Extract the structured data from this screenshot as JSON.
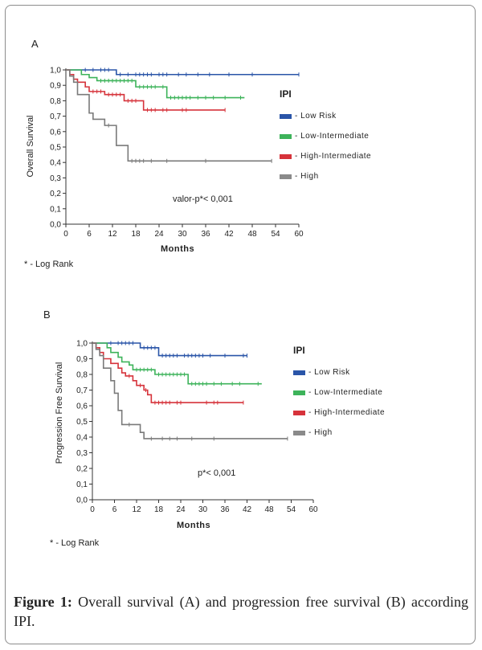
{
  "figure": {
    "caption_label": "Figure 1:",
    "caption_text": " Overall survival (A) and progression free survival (B) according IPI."
  },
  "chart_data": [
    {
      "type": "line",
      "panel": "A",
      "title": "",
      "xlabel": "Months",
      "ylabel": "Overall Survival",
      "xlim": [
        0,
        60
      ],
      "ylim": [
        0,
        1
      ],
      "xticks": [
        "0",
        "6",
        "12",
        "18",
        "24",
        "30",
        "36",
        "42",
        "48",
        "54",
        "60"
      ],
      "yticks": [
        "0,0",
        "0,1",
        "0,2",
        "0,3",
        "0,4",
        "0,5",
        "0,6",
        "0,7",
        "0,8",
        "0,9",
        "1,0"
      ],
      "annotation": "valor-p*< 0,001",
      "footnote": "* - Log Rank",
      "legend_title": "IPI",
      "legend_position": "right",
      "series": [
        {
          "name": "- Low Risk",
          "color": "#2a55a8",
          "steps": [
            [
              0,
              1.0
            ],
            [
              13,
              0.97
            ],
            [
              60,
              0.97
            ]
          ],
          "censors": [
            5,
            7,
            9,
            10,
            11,
            14,
            16,
            18,
            19,
            20,
            21,
            22,
            24,
            25,
            26,
            29,
            31,
            34,
            37,
            42,
            48,
            60
          ]
        },
        {
          "name": "- Low-Intermediate",
          "color": "#3db35a",
          "steps": [
            [
              0,
              1.0
            ],
            [
              4,
              0.97
            ],
            [
              6,
              0.95
            ],
            [
              8,
              0.93
            ],
            [
              18,
              0.89
            ],
            [
              26,
              0.82
            ],
            [
              46,
              0.82
            ]
          ],
          "censors": [
            9,
            10,
            11,
            12,
            13,
            14,
            15,
            16,
            17,
            19,
            20,
            21,
            22,
            23,
            25,
            27,
            28,
            29,
            30,
            31,
            32,
            34,
            36,
            38,
            41,
            45
          ]
        },
        {
          "name": "- High-Intermediate",
          "color": "#d6333b",
          "steps": [
            [
              0,
              1.0
            ],
            [
              1,
              0.97
            ],
            [
              2,
              0.94
            ],
            [
              3,
              0.92
            ],
            [
              5,
              0.89
            ],
            [
              6,
              0.86
            ],
            [
              10,
              0.84
            ],
            [
              15,
              0.8
            ],
            [
              20,
              0.74
            ],
            [
              41,
              0.74
            ]
          ],
          "censors": [
            7,
            8,
            9,
            11,
            12,
            13,
            14,
            16,
            17,
            18,
            21,
            22,
            23,
            25,
            26,
            30,
            31,
            41
          ]
        },
        {
          "name": "- High",
          "color": "#7a7a7a",
          "steps": [
            [
              0,
              1.0
            ],
            [
              1,
              0.96
            ],
            [
              2,
              0.92
            ],
            [
              3,
              0.84
            ],
            [
              6,
              0.72
            ],
            [
              7,
              0.68
            ],
            [
              10,
              0.64
            ],
            [
              13,
              0.51
            ],
            [
              16,
              0.41
            ],
            [
              53,
              0.41
            ]
          ],
          "censors": [
            11,
            17,
            18,
            19,
            20,
            22,
            26,
            36,
            53
          ]
        }
      ]
    },
    {
      "type": "line",
      "panel": "B",
      "title": "",
      "xlabel": "Months",
      "ylabel": "Progression Free Survival",
      "xlim": [
        0,
        60
      ],
      "ylim": [
        0,
        1
      ],
      "xticks": [
        "0",
        "6",
        "12",
        "18",
        "24",
        "30",
        "36",
        "42",
        "48",
        "54",
        "60"
      ],
      "yticks": [
        "0,0",
        "0,1",
        "0,2",
        "0,3",
        "0,4",
        "0,5",
        "0,6",
        "0,7",
        "0,8",
        "0,9",
        "1,0"
      ],
      "annotation": "p*< 0,001",
      "footnote": "* - Log Rank",
      "legend_title": "IPI",
      "legend_position": "right",
      "series": [
        {
          "name": "- Low Risk",
          "color": "#2a55a8",
          "steps": [
            [
              0,
              1.0
            ],
            [
              13,
              0.97
            ],
            [
              18,
              0.92
            ],
            [
              42,
              0.92
            ]
          ],
          "censors": [
            5,
            7,
            8,
            9,
            10,
            11,
            14,
            15,
            16,
            17,
            19,
            20,
            21,
            22,
            23,
            25,
            26,
            27,
            28,
            29,
            30,
            32,
            36,
            41,
            42
          ]
        },
        {
          "name": "- Low-Intermediate",
          "color": "#3db35a",
          "steps": [
            [
              0,
              1.0
            ],
            [
              4,
              0.97
            ],
            [
              5,
              0.94
            ],
            [
              7,
              0.91
            ],
            [
              8,
              0.88
            ],
            [
              10,
              0.86
            ],
            [
              11,
              0.83
            ],
            [
              17,
              0.8
            ],
            [
              26,
              0.74
            ],
            [
              46,
              0.74
            ]
          ],
          "censors": [
            12,
            13,
            14,
            15,
            16,
            18,
            19,
            20,
            21,
            22,
            23,
            24,
            25,
            27,
            28,
            29,
            30,
            31,
            33,
            35,
            38,
            40,
            45
          ]
        },
        {
          "name": "- High-Intermediate",
          "color": "#d6333b",
          "steps": [
            [
              0,
              1.0
            ],
            [
              1,
              0.97
            ],
            [
              2,
              0.94
            ],
            [
              3,
              0.9
            ],
            [
              5,
              0.87
            ],
            [
              7,
              0.84
            ],
            [
              8,
              0.81
            ],
            [
              9,
              0.79
            ],
            [
              11,
              0.76
            ],
            [
              12,
              0.73
            ],
            [
              14,
              0.7
            ],
            [
              15,
              0.67
            ],
            [
              16,
              0.62
            ],
            [
              41,
              0.62
            ]
          ],
          "censors": [
            10,
            13,
            14.5,
            17,
            18,
            19,
            20,
            21,
            23,
            24,
            31,
            33,
            34,
            41
          ]
        },
        {
          "name": "- High",
          "color": "#7a7a7a",
          "steps": [
            [
              0,
              1.0
            ],
            [
              1,
              0.96
            ],
            [
              2,
              0.92
            ],
            [
              3,
              0.84
            ],
            [
              5,
              0.76
            ],
            [
              6,
              0.68
            ],
            [
              7,
              0.57
            ],
            [
              8,
              0.48
            ],
            [
              13,
              0.43
            ],
            [
              14,
              0.39
            ],
            [
              53,
              0.39
            ]
          ],
          "censors": [
            10,
            16,
            19,
            21,
            23,
            27,
            33,
            53
          ]
        }
      ]
    }
  ]
}
